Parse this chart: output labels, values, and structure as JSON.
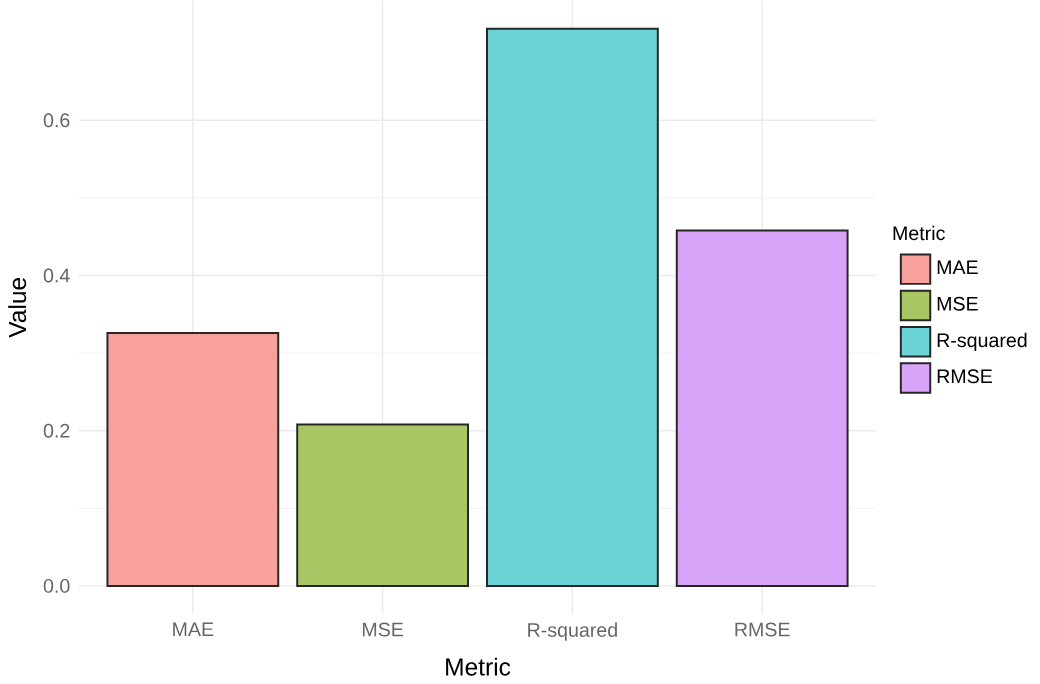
{
  "chart_data": {
    "type": "bar",
    "xlabel": "Metric",
    "ylabel": "Value",
    "legend_title": "Metric",
    "categories": [
      "MAE",
      "MSE",
      "R-squared",
      "RMSE"
    ],
    "series": [
      {
        "name": "MAE",
        "color": "#f8a19c",
        "values": [
          0.326,
          null,
          null,
          null
        ]
      },
      {
        "name": "MSE",
        "color": "#a8c663",
        "values": [
          null,
          0.208,
          null,
          null
        ]
      },
      {
        "name": "R-squared",
        "color": "#6ad3d6",
        "values": [
          null,
          null,
          0.718,
          null
        ]
      },
      {
        "name": "RMSE",
        "color": "#d8a4fa",
        "values": [
          null,
          null,
          null,
          0.458
        ]
      }
    ],
    "ylim": [
      -0.036,
      0.754
    ],
    "yticks": [
      {
        "value": 0,
        "label": "0.0"
      },
      0.2,
      0.4,
      0.6
    ],
    "grid": true,
    "legend": "right"
  }
}
